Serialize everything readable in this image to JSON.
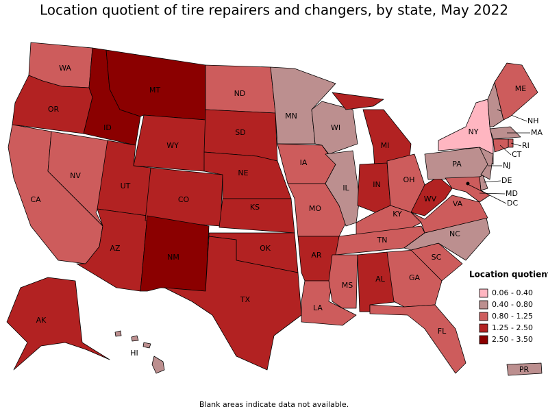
{
  "title": "Location quotient of tire repairers and changers, by state, May 2022",
  "footnote": "Blank areas indicate data not available.",
  "legend": {
    "title": "Location quotient",
    "items": [
      {
        "label": "0.06 - 0.40",
        "color": "#ffb6c1"
      },
      {
        "label": "0.40 - 0.80",
        "color": "#bc8f8f"
      },
      {
        "label": "0.80 - 1.25",
        "color": "#cd5c5c"
      },
      {
        "label": "1.25 - 2.50",
        "color": "#b22222"
      },
      {
        "label": "2.50 - 3.50",
        "color": "#8b0000"
      }
    ]
  },
  "map": {
    "states": [
      {
        "abbr": "WA",
        "color": "#cd5c5c"
      },
      {
        "abbr": "OR",
        "color": "#b22222"
      },
      {
        "abbr": "CA",
        "color": "#cd5c5c"
      },
      {
        "abbr": "NV",
        "color": "#cd5c5c"
      },
      {
        "abbr": "ID",
        "color": "#8b0000"
      },
      {
        "abbr": "MT",
        "color": "#8b0000"
      },
      {
        "abbr": "WY",
        "color": "#b22222"
      },
      {
        "abbr": "UT",
        "color": "#b22222"
      },
      {
        "abbr": "AZ",
        "color": "#b22222"
      },
      {
        "abbr": "CO",
        "color": "#b22222"
      },
      {
        "abbr": "NM",
        "color": "#8b0000"
      },
      {
        "abbr": "ND",
        "color": "#cd5c5c"
      },
      {
        "abbr": "SD",
        "color": "#b22222"
      },
      {
        "abbr": "NE",
        "color": "#b22222"
      },
      {
        "abbr": "KS",
        "color": "#b22222"
      },
      {
        "abbr": "OK",
        "color": "#b22222"
      },
      {
        "abbr": "TX",
        "color": "#b22222"
      },
      {
        "abbr": "MN",
        "color": "#bc8f8f"
      },
      {
        "abbr": "IA",
        "color": "#cd5c5c"
      },
      {
        "abbr": "MO",
        "color": "#cd5c5c"
      },
      {
        "abbr": "AR",
        "color": "#b22222"
      },
      {
        "abbr": "LA",
        "color": "#cd5c5c"
      },
      {
        "abbr": "WI",
        "color": "#bc8f8f"
      },
      {
        "abbr": "IL",
        "color": "#bc8f8f"
      },
      {
        "abbr": "MI",
        "color": "#b22222"
      },
      {
        "abbr": "IN",
        "color": "#b22222"
      },
      {
        "abbr": "OH",
        "color": "#cd5c5c"
      },
      {
        "abbr": "KY",
        "color": "#cd5c5c"
      },
      {
        "abbr": "TN",
        "color": "#cd5c5c"
      },
      {
        "abbr": "MS",
        "color": "#cd5c5c"
      },
      {
        "abbr": "AL",
        "color": "#b22222"
      },
      {
        "abbr": "GA",
        "color": "#cd5c5c"
      },
      {
        "abbr": "FL",
        "color": "#cd5c5c"
      },
      {
        "abbr": "SC",
        "color": "#cd5c5c"
      },
      {
        "abbr": "NC",
        "color": "#bc8f8f"
      },
      {
        "abbr": "VA",
        "color": "#cd5c5c"
      },
      {
        "abbr": "WV",
        "color": "#b22222"
      },
      {
        "abbr": "PA",
        "color": "#bc8f8f"
      },
      {
        "abbr": "NY",
        "color": "#ffb6c1"
      },
      {
        "abbr": "NH",
        "color": "#bc8f8f"
      },
      {
        "abbr": "ME",
        "color": "#cd5c5c"
      },
      {
        "abbr": "MA",
        "color": "#bc8f8f"
      },
      {
        "abbr": "RI",
        "color": "#cd5c5c"
      },
      {
        "abbr": "CT",
        "color": "#cd5c5c"
      },
      {
        "abbr": "NJ",
        "color": "#bc8f8f"
      },
      {
        "abbr": "DE",
        "color": "#bc8f8f"
      },
      {
        "abbr": "MD",
        "color": "#cd5c5c"
      },
      {
        "abbr": "DC",
        "color": "#000000"
      },
      {
        "abbr": "AK",
        "color": "#b22222"
      },
      {
        "abbr": "HI",
        "color": "#bc8f8f"
      },
      {
        "abbr": "PR",
        "color": "#bc8f8f"
      }
    ]
  }
}
